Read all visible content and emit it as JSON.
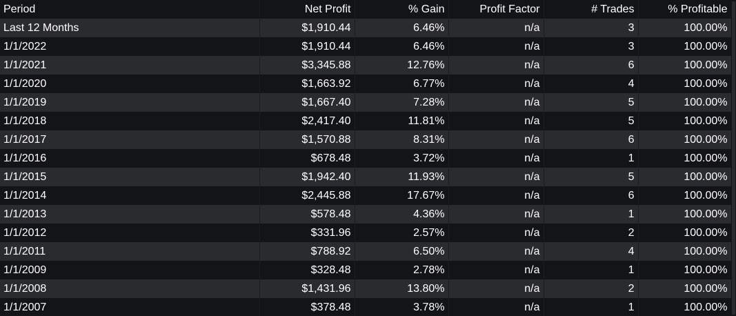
{
  "columns": {
    "period": "Period",
    "net_profit": "Net Profit",
    "gain": "% Gain",
    "profit_factor": "Profit Factor",
    "trades": "# Trades",
    "profitable": "% Profitable"
  },
  "rows": [
    {
      "period": "Last 12 Months",
      "net_profit": "$1,910.44",
      "gain": "6.46%",
      "profit_factor": "n/a",
      "trades": "3",
      "profitable": "100.00%"
    },
    {
      "period": "1/1/2022",
      "net_profit": "$1,910.44",
      "gain": "6.46%",
      "profit_factor": "n/a",
      "trades": "3",
      "profitable": "100.00%"
    },
    {
      "period": "1/1/2021",
      "net_profit": "$3,345.88",
      "gain": "12.76%",
      "profit_factor": "n/a",
      "trades": "6",
      "profitable": "100.00%"
    },
    {
      "period": "1/1/2020",
      "net_profit": "$1,663.92",
      "gain": "6.77%",
      "profit_factor": "n/a",
      "trades": "4",
      "profitable": "100.00%"
    },
    {
      "period": "1/1/2019",
      "net_profit": "$1,667.40",
      "gain": "7.28%",
      "profit_factor": "n/a",
      "trades": "5",
      "profitable": "100.00%"
    },
    {
      "period": "1/1/2018",
      "net_profit": "$2,417.40",
      "gain": "11.81%",
      "profit_factor": "n/a",
      "trades": "5",
      "profitable": "100.00%"
    },
    {
      "period": "1/1/2017",
      "net_profit": "$1,570.88",
      "gain": "8.31%",
      "profit_factor": "n/a",
      "trades": "6",
      "profitable": "100.00%"
    },
    {
      "period": "1/1/2016",
      "net_profit": "$678.48",
      "gain": "3.72%",
      "profit_factor": "n/a",
      "trades": "1",
      "profitable": "100.00%"
    },
    {
      "period": "1/1/2015",
      "net_profit": "$1,942.40",
      "gain": "11.93%",
      "profit_factor": "n/a",
      "trades": "5",
      "profitable": "100.00%"
    },
    {
      "period": "1/1/2014",
      "net_profit": "$2,445.88",
      "gain": "17.67%",
      "profit_factor": "n/a",
      "trades": "6",
      "profitable": "100.00%"
    },
    {
      "period": "1/1/2013",
      "net_profit": "$578.48",
      "gain": "4.36%",
      "profit_factor": "n/a",
      "trades": "1",
      "profitable": "100.00%"
    },
    {
      "period": "1/1/2012",
      "net_profit": "$331.96",
      "gain": "2.57%",
      "profit_factor": "n/a",
      "trades": "2",
      "profitable": "100.00%"
    },
    {
      "period": "1/1/2011",
      "net_profit": "$788.92",
      "gain": "6.50%",
      "profit_factor": "n/a",
      "trades": "4",
      "profitable": "100.00%"
    },
    {
      "period": "1/1/2009",
      "net_profit": "$328.48",
      "gain": "2.78%",
      "profit_factor": "n/a",
      "trades": "1",
      "profitable": "100.00%"
    },
    {
      "period": "1/1/2008",
      "net_profit": "$1,431.96",
      "gain": "13.80%",
      "profit_factor": "n/a",
      "trades": "2",
      "profitable": "100.00%"
    },
    {
      "period": "1/1/2007",
      "net_profit": "$378.48",
      "gain": "3.78%",
      "profit_factor": "n/a",
      "trades": "1",
      "profitable": "100.00%"
    }
  ],
  "colors": {
    "background": "#131418",
    "row_stripe": "#2a2b2f",
    "text": "#ffffff"
  }
}
